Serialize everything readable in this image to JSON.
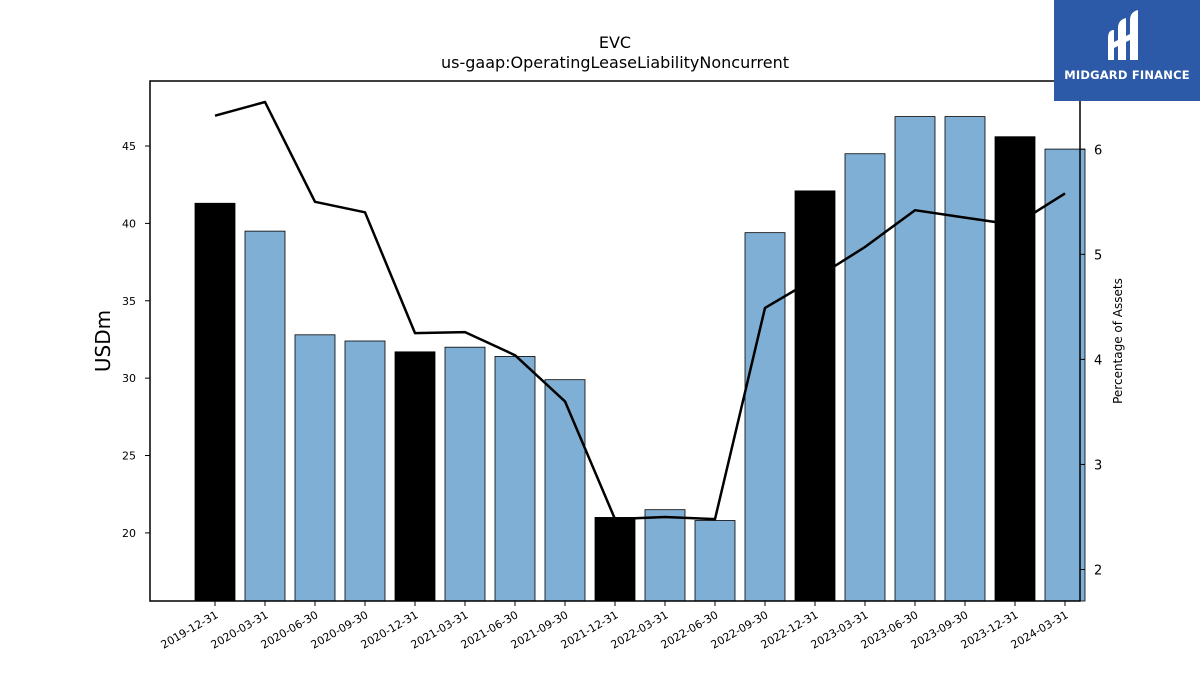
{
  "chart_data": {
    "type": "bar",
    "title": "EVC",
    "subtitle": "us-gaap:OperatingLeaseLiabilityNoncurrent",
    "ylabel": "USDm",
    "y2label": "Percentage of Assets",
    "ylim": [
      15.6,
      49.2
    ],
    "y2lim": [
      1.7,
      6.65
    ],
    "yticks": [
      20,
      25,
      30,
      35,
      40,
      45
    ],
    "y2ticks": [
      2,
      3,
      4,
      5,
      6
    ],
    "categories": [
      "2019-12-31",
      "2020-03-31",
      "2020-06-30",
      "2020-09-30",
      "2020-12-31",
      "2021-03-31",
      "2021-06-30",
      "2021-09-30",
      "2021-12-31",
      "2022-03-31",
      "2022-06-30",
      "2022-09-30",
      "2022-12-31",
      "2023-03-31",
      "2023-06-30",
      "2023-09-30",
      "2023-12-31",
      "2024-03-31"
    ],
    "series": [
      {
        "values": [
          41.3,
          39.5,
          32.8,
          32.4,
          31.7,
          32.0,
          31.4,
          29.9,
          21.0,
          21.5,
          20.8,
          39.4,
          42.1,
          44.5,
          46.9,
          46.9,
          45.6,
          44.8
        ],
        "colors": [
          "#000000",
          "#7fafd4",
          "#7fafd4",
          "#7fafd4",
          "#000000",
          "#7fafd4",
          "#7fafd4",
          "#7fafd4",
          "#000000",
          "#7fafd4",
          "#7fafd4",
          "#7fafd4",
          "#000000",
          "#7fafd4",
          "#7fafd4",
          "#7fafd4",
          "#000000",
          "#7fafd4"
        ],
        "axis": "left"
      },
      {
        "type": "line",
        "values": [
          6.32,
          6.45,
          5.5,
          5.4,
          4.25,
          4.26,
          4.04,
          3.6,
          2.48,
          2.5,
          2.48,
          4.49,
          4.77,
          5.07,
          5.42,
          5.35,
          5.28,
          5.58
        ],
        "color": "#000000",
        "axis": "right"
      }
    ],
    "grid": false
  },
  "logo": {
    "text": "MIDGARD FINANCE",
    "background": "#2d5aa8"
  }
}
